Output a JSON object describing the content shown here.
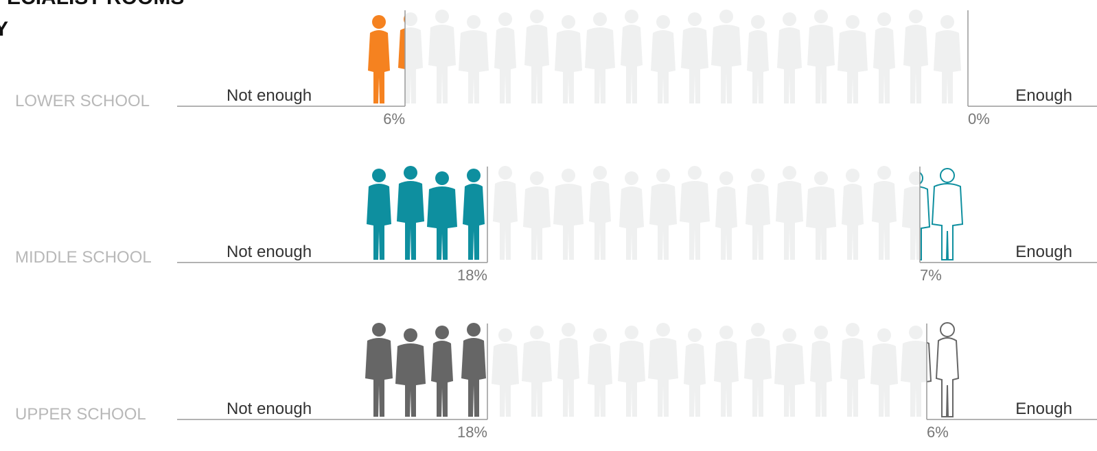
{
  "chart_data": {
    "type": "pictogram",
    "title": [
      "D SPECIALIST ROOMS",
      "Y"
    ],
    "categories": [
      "LOWER SCHOOL",
      "MIDDLE SCHOOL",
      "UPPER SCHOOL"
    ],
    "series": [
      {
        "name": "Not enough",
        "values": [
          6,
          18,
          18
        ],
        "value_labels": [
          "6%",
          "18%",
          "18%"
        ]
      },
      {
        "name": "Enough",
        "values": [
          0,
          7,
          6
        ],
        "value_labels": [
          "0%",
          "7%",
          "6%"
        ]
      }
    ],
    "colors": [
      "#f58220",
      "#0e8f9f",
      "#666666"
    ]
  }
}
